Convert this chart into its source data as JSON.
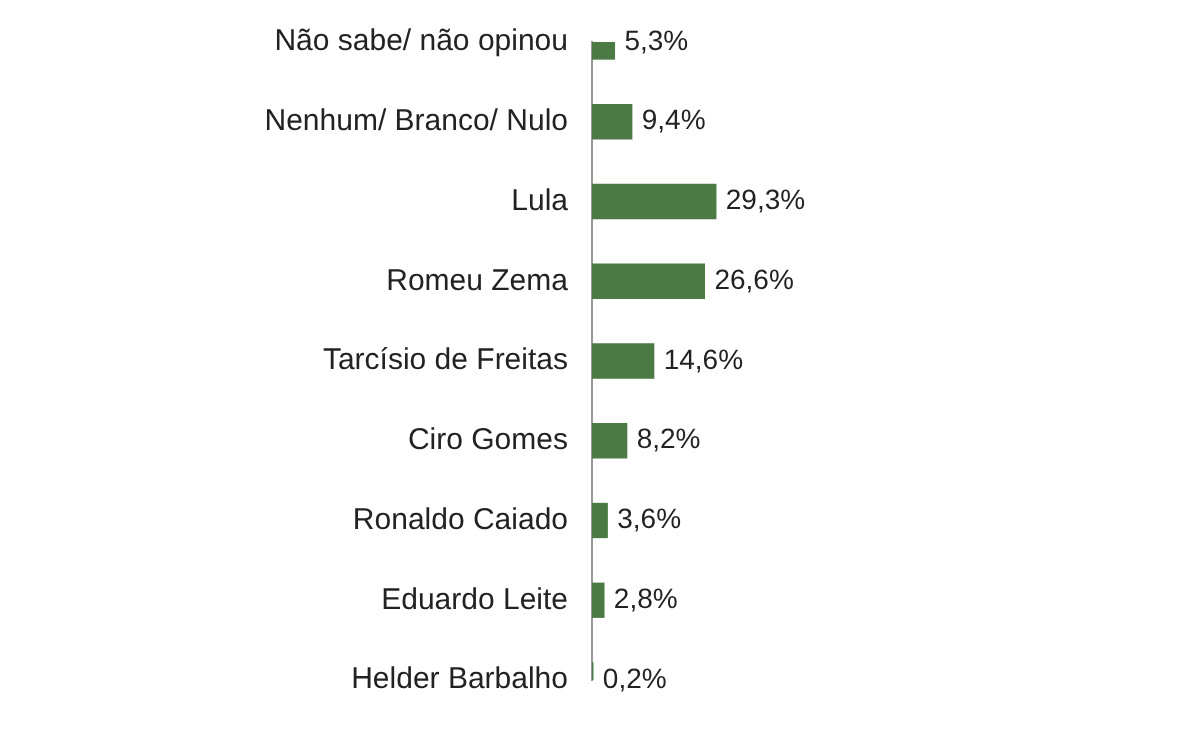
{
  "chart_data": {
    "type": "bar",
    "orientation": "horizontal",
    "categories": [
      "Não sabe/ não opinou",
      "Nenhum/ Branco/ Nulo",
      "Lula",
      "Romeu Zema",
      "Tarcísio de Freitas",
      "Ciro Gomes",
      "Ronaldo Caiado",
      "Eduardo Leite",
      "Helder Barbalho"
    ],
    "values": [
      5.3,
      9.4,
      29.3,
      26.6,
      14.6,
      8.2,
      3.6,
      2.8,
      0.2
    ],
    "value_labels": [
      "5,3%",
      "9,4%",
      "29,3%",
      "26,6%",
      "14,6%",
      "8,2%",
      "3,6%",
      "2,8%",
      "0,2%"
    ],
    "color": "#4b7a45"
  }
}
